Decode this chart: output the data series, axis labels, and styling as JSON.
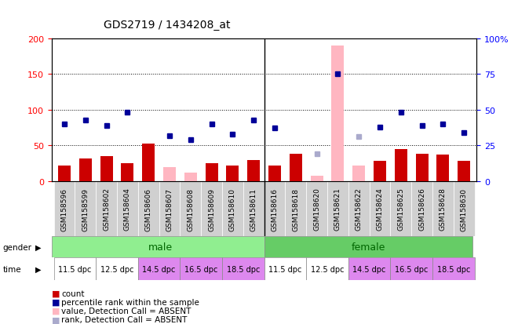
{
  "title": "GDS2719 / 1434208_at",
  "samples": [
    "GSM158596",
    "GSM158599",
    "GSM158602",
    "GSM158604",
    "GSM158606",
    "GSM158607",
    "GSM158608",
    "GSM158609",
    "GSM158610",
    "GSM158611",
    "GSM158616",
    "GSM158618",
    "GSM158620",
    "GSM158621",
    "GSM158622",
    "GSM158624",
    "GSM158625",
    "GSM158626",
    "GSM158628",
    "GSM158630"
  ],
  "bar_values": [
    22,
    32,
    35,
    25,
    52,
    null,
    null,
    25,
    22,
    30,
    22,
    38,
    null,
    null,
    null,
    28,
    45,
    38,
    37,
    28
  ],
  "bar_absent": [
    null,
    null,
    null,
    null,
    null,
    20,
    12,
    null,
    null,
    null,
    null,
    null,
    8,
    190,
    22,
    null,
    null,
    null,
    null,
    null
  ],
  "rank_values": [
    40,
    43,
    39,
    48,
    null,
    32,
    29,
    40,
    33,
    43,
    37,
    null,
    null,
    75,
    null,
    38,
    48,
    39,
    40,
    34
  ],
  "rank_absent": [
    null,
    null,
    null,
    null,
    null,
    null,
    null,
    null,
    null,
    null,
    null,
    null,
    19,
    null,
    31,
    null,
    null,
    null,
    null,
    null
  ],
  "bar_color": "#cc0000",
  "bar_absent_color": "#ffb6c1",
  "rank_color": "#000099",
  "rank_absent_color": "#aaaacc",
  "gender_male_color": "#90ee90",
  "gender_female_color": "#66cc66",
  "gender_text_male": "#006600",
  "gender_text_female": "#006600",
  "time_colors": [
    "#ffffff",
    "#ffffff",
    "#dd88ee",
    "#dd88ee",
    "#dd88ee"
  ],
  "ylim_left": [
    0,
    200
  ],
  "yticks_left": [
    0,
    50,
    100,
    150,
    200
  ],
  "yticks_right": [
    0,
    25,
    50,
    75,
    100
  ],
  "ytick_labels_right": [
    "0",
    "25",
    "50",
    "75",
    "100%"
  ],
  "gridlines": [
    50,
    100,
    150
  ],
  "background_color": "#ffffff",
  "plot_bg": "#ffffff",
  "time_labels": [
    "11.5 dpc",
    "12.5 dpc",
    "14.5 dpc",
    "16.5 dpc",
    "18.5 dpc"
  ]
}
